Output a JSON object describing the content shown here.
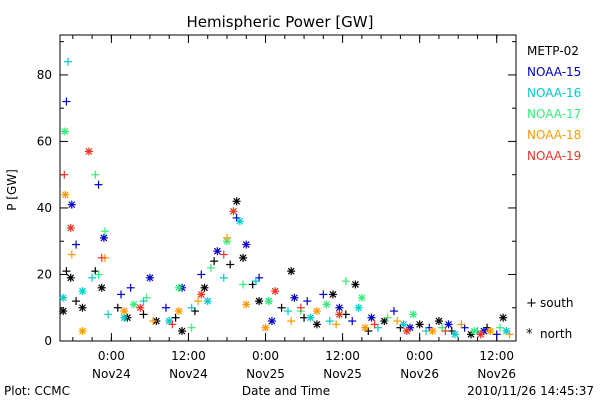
{
  "chart_data": {
    "type": "scatter",
    "title": "Hemispheric Power [GW]",
    "ylabel": "P [GW]",
    "xlabel": "Date and Time",
    "ylim": [
      0,
      92
    ],
    "xlim": [
      "2010-11-23T16:00",
      "2010-11-26T15:00"
    ],
    "yticks": [
      "0",
      "20",
      "40",
      "60",
      "80"
    ],
    "xticks": [
      {
        "time": "2010-11-24T00:00",
        "l1": "0:00",
        "l2": "Nov24"
      },
      {
        "time": "2010-11-24T12:00",
        "l1": "12:00",
        "l2": "Nov24"
      },
      {
        "time": "2010-11-25T00:00",
        "l1": "0:00",
        "l2": "Nov25"
      },
      {
        "time": "2010-11-25T12:00",
        "l1": "12:00",
        "l2": "Nov25"
      },
      {
        "time": "2010-11-26T00:00",
        "l1": "0:00",
        "l2": "Nov26"
      },
      {
        "time": "2010-11-26T12:00",
        "l1": "12:00",
        "l2": "Nov26"
      }
    ],
    "grid": false,
    "legend_position": "right",
    "series": [
      {
        "name": "METP-02",
        "color": "#000000",
        "points": [
          [
            "2010-11-23T16:30",
            9,
            "north"
          ],
          [
            "2010-11-23T17:00",
            21,
            "south"
          ],
          [
            "2010-11-23T17:40",
            19,
            "north"
          ],
          [
            "2010-11-23T18:30",
            12,
            "south"
          ],
          [
            "2010-11-23T19:30",
            10,
            "north"
          ],
          [
            "2010-11-23T21:30",
            21,
            "south"
          ],
          [
            "2010-11-23T22:30",
            16,
            "north"
          ],
          [
            "2010-11-24T01:00",
            10,
            "south"
          ],
          [
            "2010-11-24T02:30",
            7,
            "north"
          ],
          [
            "2010-11-24T05:00",
            8,
            "south"
          ],
          [
            "2010-11-24T07:00",
            6,
            "north"
          ],
          [
            "2010-11-24T10:00",
            7,
            "south"
          ],
          [
            "2010-11-24T11:00",
            3,
            "north"
          ],
          [
            "2010-11-24T13:00",
            9,
            "south"
          ],
          [
            "2010-11-24T14:30",
            16,
            "north"
          ],
          [
            "2010-11-24T16:00",
            24,
            "south"
          ],
          [
            "2010-11-24T18:30",
            23,
            "south"
          ],
          [
            "2010-11-24T19:30",
            42,
            "north"
          ],
          [
            "2010-11-24T20:30",
            25,
            "north"
          ],
          [
            "2010-11-24T22:00",
            17,
            "south"
          ],
          [
            "2010-11-24T23:00",
            12,
            "north"
          ],
          [
            "2010-11-25T02:30",
            10,
            "south"
          ],
          [
            "2010-11-25T04:00",
            21,
            "north"
          ],
          [
            "2010-11-25T06:00",
            7,
            "south"
          ],
          [
            "2010-11-25T08:00",
            5,
            "north"
          ],
          [
            "2010-11-25T10:30",
            14,
            "north"
          ],
          [
            "2010-11-25T12:30",
            8,
            "south"
          ],
          [
            "2010-11-25T14:00",
            17,
            "north"
          ],
          [
            "2010-11-25T16:00",
            3,
            "south"
          ],
          [
            "2010-11-25T18:30",
            6,
            "north"
          ],
          [
            "2010-11-25T21:00",
            4,
            "south"
          ],
          [
            "2010-11-26T00:00",
            5,
            "north"
          ],
          [
            "2010-11-26T03:00",
            6,
            "north"
          ],
          [
            "2010-11-26T05:00",
            3,
            "south"
          ],
          [
            "2010-11-26T08:00",
            2,
            "north"
          ],
          [
            "2010-11-26T10:30",
            4,
            "south"
          ],
          [
            "2010-11-26T13:00",
            7,
            "north"
          ]
        ]
      },
      {
        "name": "NOAA-15",
        "color": "#0000cc",
        "points": [
          [
            "2010-11-23T17:00",
            72,
            "south"
          ],
          [
            "2010-11-23T17:50",
            41,
            "north"
          ],
          [
            "2010-11-23T18:30",
            29,
            "south"
          ],
          [
            "2010-11-23T22:00",
            47,
            "south"
          ],
          [
            "2010-11-23T22:50",
            31,
            "north"
          ],
          [
            "2010-11-24T01:30",
            14,
            "south"
          ],
          [
            "2010-11-24T03:00",
            16,
            "south"
          ],
          [
            "2010-11-24T06:00",
            19,
            "north"
          ],
          [
            "2010-11-24T08:30",
            10,
            "south"
          ],
          [
            "2010-11-24T11:00",
            16,
            "north"
          ],
          [
            "2010-11-24T14:00",
            20,
            "south"
          ],
          [
            "2010-11-24T16:30",
            27,
            "north"
          ],
          [
            "2010-11-24T19:30",
            37,
            "south"
          ],
          [
            "2010-11-24T21:00",
            29,
            "north"
          ],
          [
            "2010-11-24T23:00",
            19,
            "south"
          ],
          [
            "2010-11-25T01:00",
            6,
            "north"
          ],
          [
            "2010-11-25T04:30",
            13,
            "north"
          ],
          [
            "2010-11-25T06:30",
            12,
            "south"
          ],
          [
            "2010-11-25T09:00",
            14,
            "south"
          ],
          [
            "2010-11-25T11:30",
            10,
            "north"
          ],
          [
            "2010-11-25T13:30",
            6,
            "south"
          ],
          [
            "2010-11-25T16:30",
            7,
            "north"
          ],
          [
            "2010-11-25T20:00",
            9,
            "south"
          ],
          [
            "2010-11-25T22:30",
            4,
            "north"
          ],
          [
            "2010-11-26T01:30",
            4,
            "south"
          ],
          [
            "2010-11-26T04:30",
            5,
            "north"
          ],
          [
            "2010-11-26T07:00",
            4,
            "south"
          ],
          [
            "2010-11-26T10:00",
            3,
            "north"
          ],
          [
            "2010-11-26T12:00",
            2,
            "south"
          ]
        ]
      },
      {
        "name": "NOAA-16",
        "color": "#00cccc",
        "points": [
          [
            "2010-11-23T16:30",
            13,
            "north"
          ],
          [
            "2010-11-23T17:15",
            84,
            "south"
          ],
          [
            "2010-11-23T19:30",
            15,
            "north"
          ],
          [
            "2010-11-23T21:00",
            19,
            "south"
          ],
          [
            "2010-11-23T23:30",
            8,
            "south"
          ],
          [
            "2010-11-24T02:00",
            7,
            "north"
          ],
          [
            "2010-11-24T05:00",
            12,
            "south"
          ],
          [
            "2010-11-24T09:00",
            6,
            "north"
          ],
          [
            "2010-11-24T12:30",
            10,
            "south"
          ],
          [
            "2010-11-24T15:00",
            12,
            "north"
          ],
          [
            "2010-11-24T17:30",
            19,
            "south"
          ],
          [
            "2010-11-24T20:00",
            36,
            "north"
          ],
          [
            "2010-11-24T22:30",
            18,
            "south"
          ],
          [
            "2010-11-25T00:30",
            12,
            "north"
          ],
          [
            "2010-11-25T03:30",
            9,
            "south"
          ],
          [
            "2010-11-25T07:00",
            7,
            "north"
          ],
          [
            "2010-11-25T10:00",
            6,
            "south"
          ],
          [
            "2010-11-25T14:30",
            10,
            "north"
          ],
          [
            "2010-11-25T17:30",
            4,
            "south"
          ],
          [
            "2010-11-25T21:30",
            5,
            "north"
          ],
          [
            "2010-11-26T01:00",
            3,
            "south"
          ],
          [
            "2010-11-26T05:30",
            2,
            "north"
          ],
          [
            "2010-11-26T09:00",
            3,
            "south"
          ],
          [
            "2010-11-26T13:30",
            3,
            "north"
          ]
        ]
      },
      {
        "name": "NOAA-17",
        "color": "#33ee77",
        "points": [
          [
            "2010-11-23T16:45",
            63,
            "north"
          ],
          [
            "2010-11-23T21:30",
            50,
            "south"
          ],
          [
            "2010-11-23T22:00",
            20,
            "south"
          ],
          [
            "2010-11-23T23:00",
            33,
            "south"
          ],
          [
            "2010-11-24T03:30",
            11,
            "north"
          ],
          [
            "2010-11-24T05:30",
            13,
            "south"
          ],
          [
            "2010-11-24T10:30",
            16,
            "north"
          ],
          [
            "2010-11-24T12:30",
            4,
            "south"
          ],
          [
            "2010-11-24T15:30",
            22,
            "south"
          ],
          [
            "2010-11-24T18:00",
            30,
            "north"
          ],
          [
            "2010-11-24T20:30",
            17,
            "south"
          ],
          [
            "2010-11-25T00:30",
            12,
            "north"
          ],
          [
            "2010-11-25T05:30",
            9,
            "south"
          ],
          [
            "2010-11-25T09:30",
            11,
            "north"
          ],
          [
            "2010-11-25T12:30",
            18,
            "south"
          ],
          [
            "2010-11-25T15:00",
            13,
            "north"
          ],
          [
            "2010-11-25T19:00",
            7,
            "south"
          ],
          [
            "2010-11-25T23:00",
            8,
            "north"
          ],
          [
            "2010-11-26T03:30",
            4,
            "south"
          ],
          [
            "2010-11-26T08:30",
            3,
            "north"
          ],
          [
            "2010-11-26T12:30",
            4,
            "south"
          ]
        ]
      },
      {
        "name": "NOAA-18",
        "color": "#ff9900",
        "points": [
          [
            "2010-11-23T16:50",
            44,
            "north"
          ],
          [
            "2010-11-23T17:50",
            26,
            "south"
          ],
          [
            "2010-11-23T19:30",
            3,
            "north"
          ],
          [
            "2010-11-23T23:00",
            25,
            "south"
          ],
          [
            "2010-11-24T02:00",
            9,
            "north"
          ],
          [
            "2010-11-24T06:30",
            6,
            "south"
          ],
          [
            "2010-11-24T10:30",
            9,
            "north"
          ],
          [
            "2010-11-24T13:30",
            12,
            "south"
          ],
          [
            "2010-11-24T18:00",
            31,
            "south"
          ],
          [
            "2010-11-24T21:00",
            11,
            "north"
          ],
          [
            "2010-11-25T00:00",
            4,
            "north"
          ],
          [
            "2010-11-25T04:00",
            6,
            "south"
          ],
          [
            "2010-11-25T08:00",
            9,
            "north"
          ],
          [
            "2010-11-25T11:00",
            5,
            "south"
          ],
          [
            "2010-11-25T15:30",
            4,
            "north"
          ],
          [
            "2010-11-25T20:30",
            6,
            "south"
          ],
          [
            "2010-11-26T02:00",
            3,
            "north"
          ],
          [
            "2010-11-26T06:30",
            5,
            "south"
          ],
          [
            "2010-11-26T11:00",
            3,
            "north"
          ],
          [
            "2010-11-26T14:00",
            2,
            "south"
          ]
        ]
      },
      {
        "name": "NOAA-19",
        "color": "#ee3322",
        "points": [
          [
            "2010-11-23T16:40",
            50,
            "south"
          ],
          [
            "2010-11-23T17:40",
            34,
            "north"
          ],
          [
            "2010-11-23T20:30",
            57,
            "north"
          ],
          [
            "2010-11-23T22:30",
            25,
            "south"
          ],
          [
            "2010-11-24T04:30",
            10,
            "north"
          ],
          [
            "2010-11-24T09:30",
            5,
            "south"
          ],
          [
            "2010-11-24T14:00",
            14,
            "north"
          ],
          [
            "2010-11-24T17:30",
            26,
            "south"
          ],
          [
            "2010-11-24T19:00",
            39,
            "north"
          ],
          [
            "2010-11-25T01:30",
            15,
            "north"
          ],
          [
            "2010-11-25T05:30",
            10,
            "south"
          ],
          [
            "2010-11-25T11:30",
            8,
            "north"
          ],
          [
            "2010-11-25T17:00",
            5,
            "south"
          ],
          [
            "2010-11-25T22:00",
            3,
            "north"
          ],
          [
            "2010-11-26T04:00",
            3,
            "south"
          ],
          [
            "2010-11-26T09:30",
            2,
            "north"
          ]
        ]
      }
    ],
    "symbol_legend": [
      {
        "symbol": "+",
        "label": "south"
      },
      {
        "symbol": "*",
        "label": "north"
      }
    ]
  },
  "footer": {
    "plot_credit": "Plot: CCMC",
    "timestamp": "2010/11/26 14:45:37"
  }
}
